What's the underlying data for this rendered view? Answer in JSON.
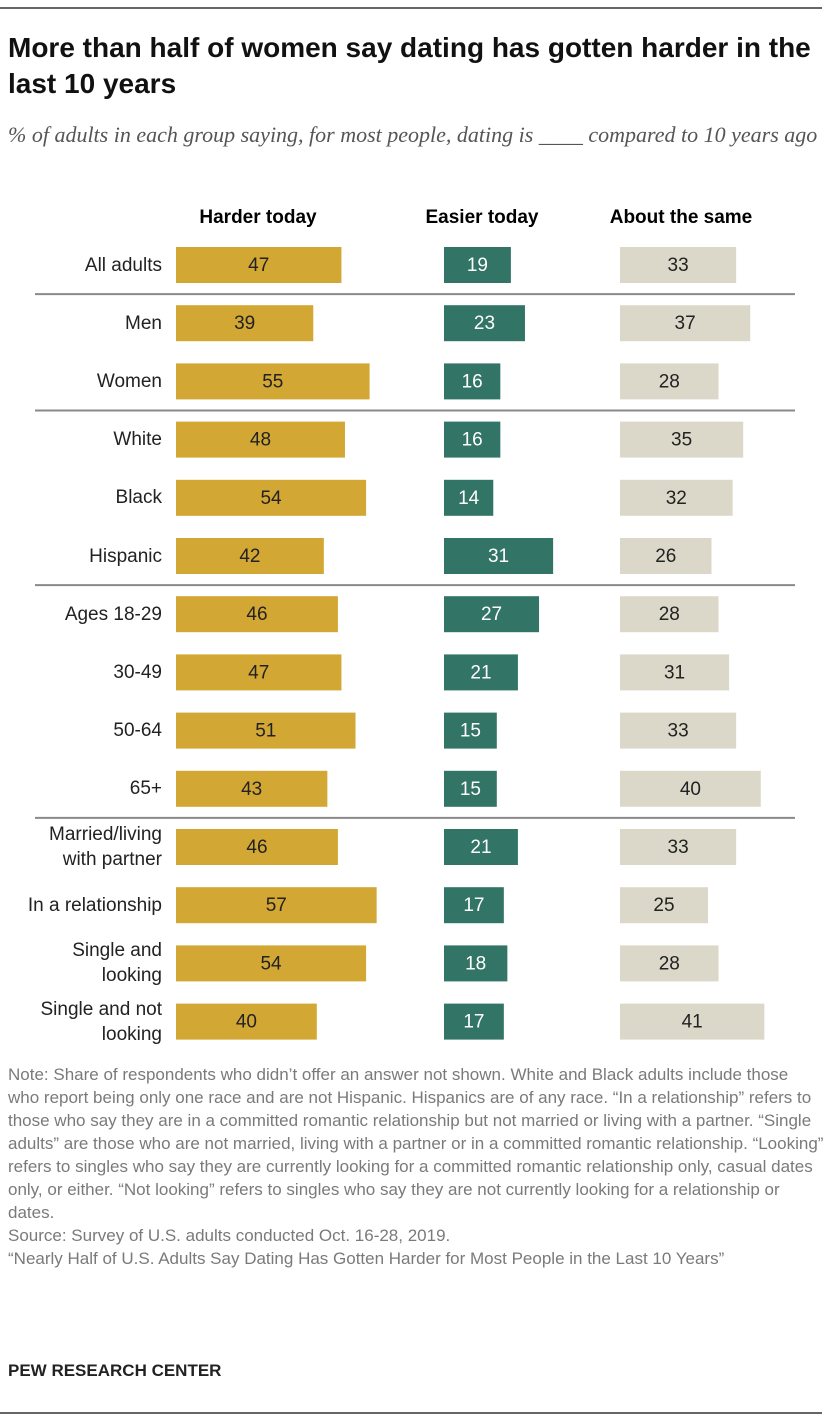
{
  "chart_data": {
    "type": "bar",
    "title": "More than half of women say dating has gotten harder in the last 10 years",
    "subtitle": "% of adults in each group saying, for most people, dating is ____ compared to 10 years ago",
    "categories": [
      "All adults",
      "Men",
      "Women",
      "White",
      "Black",
      "Hispanic",
      "Ages 18-29",
      "30-49",
      "50-64",
      "65+",
      "Married/living with partner",
      "In a relationship",
      "Single and looking",
      "Single and not looking"
    ],
    "series": [
      {
        "name": "Harder today",
        "color": "#d3a733",
        "values": [
          47,
          39,
          55,
          48,
          54,
          42,
          46,
          47,
          51,
          43,
          46,
          57,
          54,
          40
        ]
      },
      {
        "name": "Easier today",
        "color": "#327566",
        "values": [
          19,
          23,
          16,
          16,
          14,
          31,
          27,
          21,
          15,
          15,
          21,
          17,
          18,
          17
        ]
      },
      {
        "name": "About the same",
        "color": "#dcd8c9",
        "values": [
          33,
          37,
          28,
          35,
          32,
          26,
          28,
          31,
          33,
          40,
          33,
          25,
          28,
          41
        ]
      }
    ],
    "note": "Note: Share of respondents who didn’t offer an answer not shown. White and Black adults include those who report being only one race and are not Hispanic. Hispanics are of any race. “In a relationship” refers to those who say they are in a committed romantic relationship but not married or living with a partner. “Single adults” are those who are not married, living with a partner or in a committed romantic relationship. “Looking” refers to singles who say they are currently looking for a committed romantic relationship only, casual dates only, or either. “Not looking” refers to singles who say they are not currently looking for a relationship or dates.",
    "source": "Source: Survey of U.S. adults conducted Oct. 16-28, 2019.",
    "report": "“Nearly Half of U.S. Adults Say Dating Has Gotten Harder for Most People in the Last 10 Years”",
    "credit": "PEW RESEARCH CENTER"
  }
}
